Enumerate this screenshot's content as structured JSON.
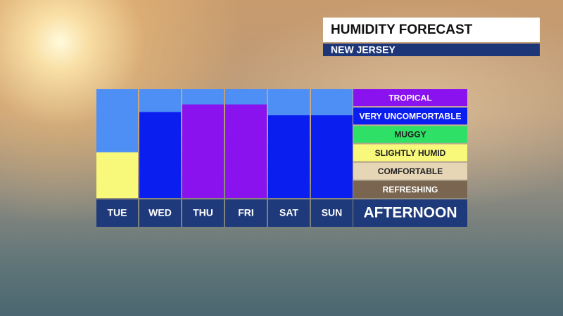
{
  "chart_data": {
    "type": "bar",
    "title": "HUMIDITY FORECAST",
    "subtitle": "NEW JERSEY",
    "categories": [
      "TUE",
      "WED",
      "THU",
      "FRI",
      "SAT",
      "SUN"
    ],
    "values": [
      42,
      79,
      86,
      86,
      76,
      76
    ],
    "colors": [
      "#f8f87a",
      "#0a1ef0",
      "#8a12ee",
      "#8a12ee",
      "#0a1ef0",
      "#0a1ef0"
    ],
    "ylim": [
      0,
      100
    ],
    "legend_title": "AFTERNOON",
    "legend": [
      {
        "label": "TROPICAL",
        "color": "#8a12ee"
      },
      {
        "label": "VERY UNCOMFORTABLE",
        "color": "#0a1ef0"
      },
      {
        "label": "MUGGY",
        "color": "#2ee066"
      },
      {
        "label": "SLIGHTLY HUMID",
        "color": "#f8f87a"
      },
      {
        "label": "COMFORTABLE",
        "color": "#e6d6b6"
      },
      {
        "label": "REFRESHING",
        "color": "#7a6650"
      }
    ]
  }
}
